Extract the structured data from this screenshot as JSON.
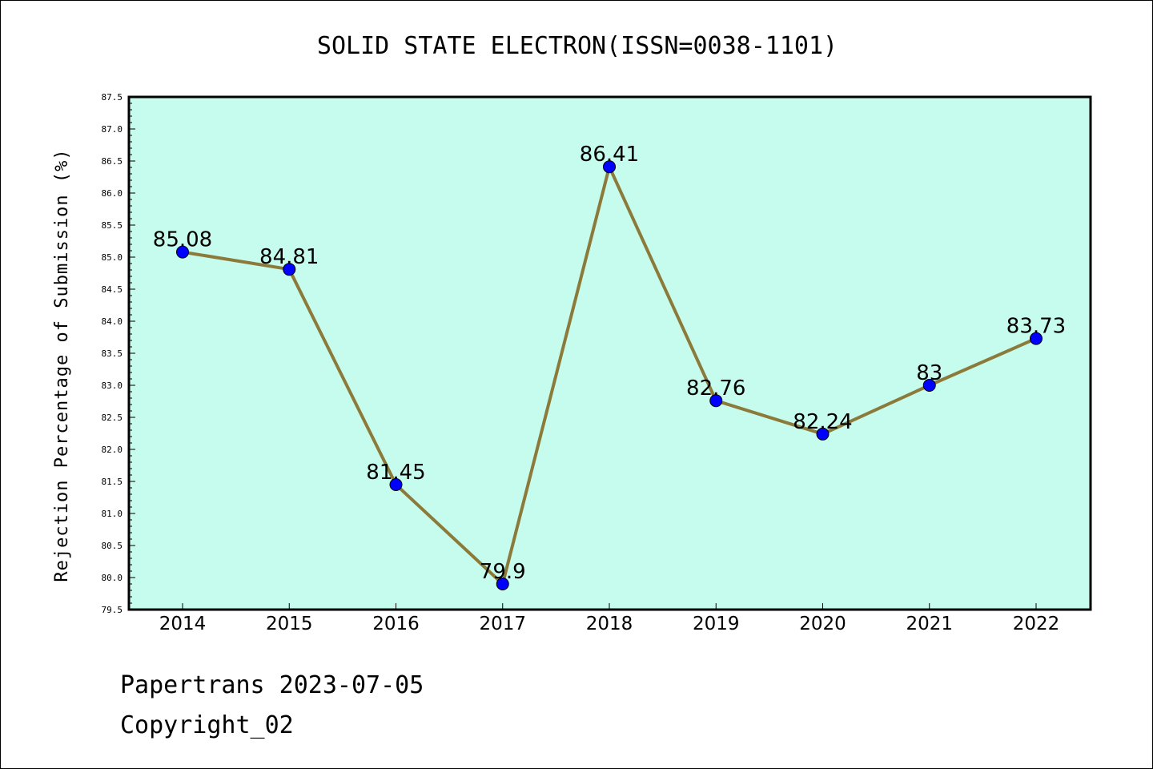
{
  "colors": {
    "plot_background": "#c6fced",
    "line": "#8c7a3a",
    "marker": "#0000ff"
  },
  "footer": {
    "line1": "Papertrans 2023-07-05",
    "line2": "Copyright_02"
  },
  "chart_data": {
    "type": "line",
    "title": "SOLID STATE ELECTRON(ISSN=0038-1101)",
    "xlabel": "",
    "ylabel": "Rejection Percentage of Submission (%)",
    "categories": [
      "2014",
      "2015",
      "2016",
      "2017",
      "2018",
      "2019",
      "2020",
      "2021",
      "2022"
    ],
    "values": [
      85.08,
      84.81,
      81.45,
      79.9,
      86.41,
      82.76,
      82.24,
      83,
      83.73
    ],
    "data_labels": [
      "85.08",
      "84.81",
      "81.45",
      "79.9",
      "86.41",
      "82.76",
      "82.24",
      "83",
      "83.73"
    ],
    "ylim": [
      79.5,
      87.5
    ],
    "yticks": [
      "79.5",
      "80.0",
      "80.5",
      "81.0",
      "81.5",
      "82.0",
      "82.5",
      "83.0",
      "83.5",
      "84.0",
      "84.5",
      "85.0",
      "85.5",
      "86.0",
      "86.5",
      "87.0",
      "87.5"
    ],
    "grid": false,
    "legend": "none"
  }
}
